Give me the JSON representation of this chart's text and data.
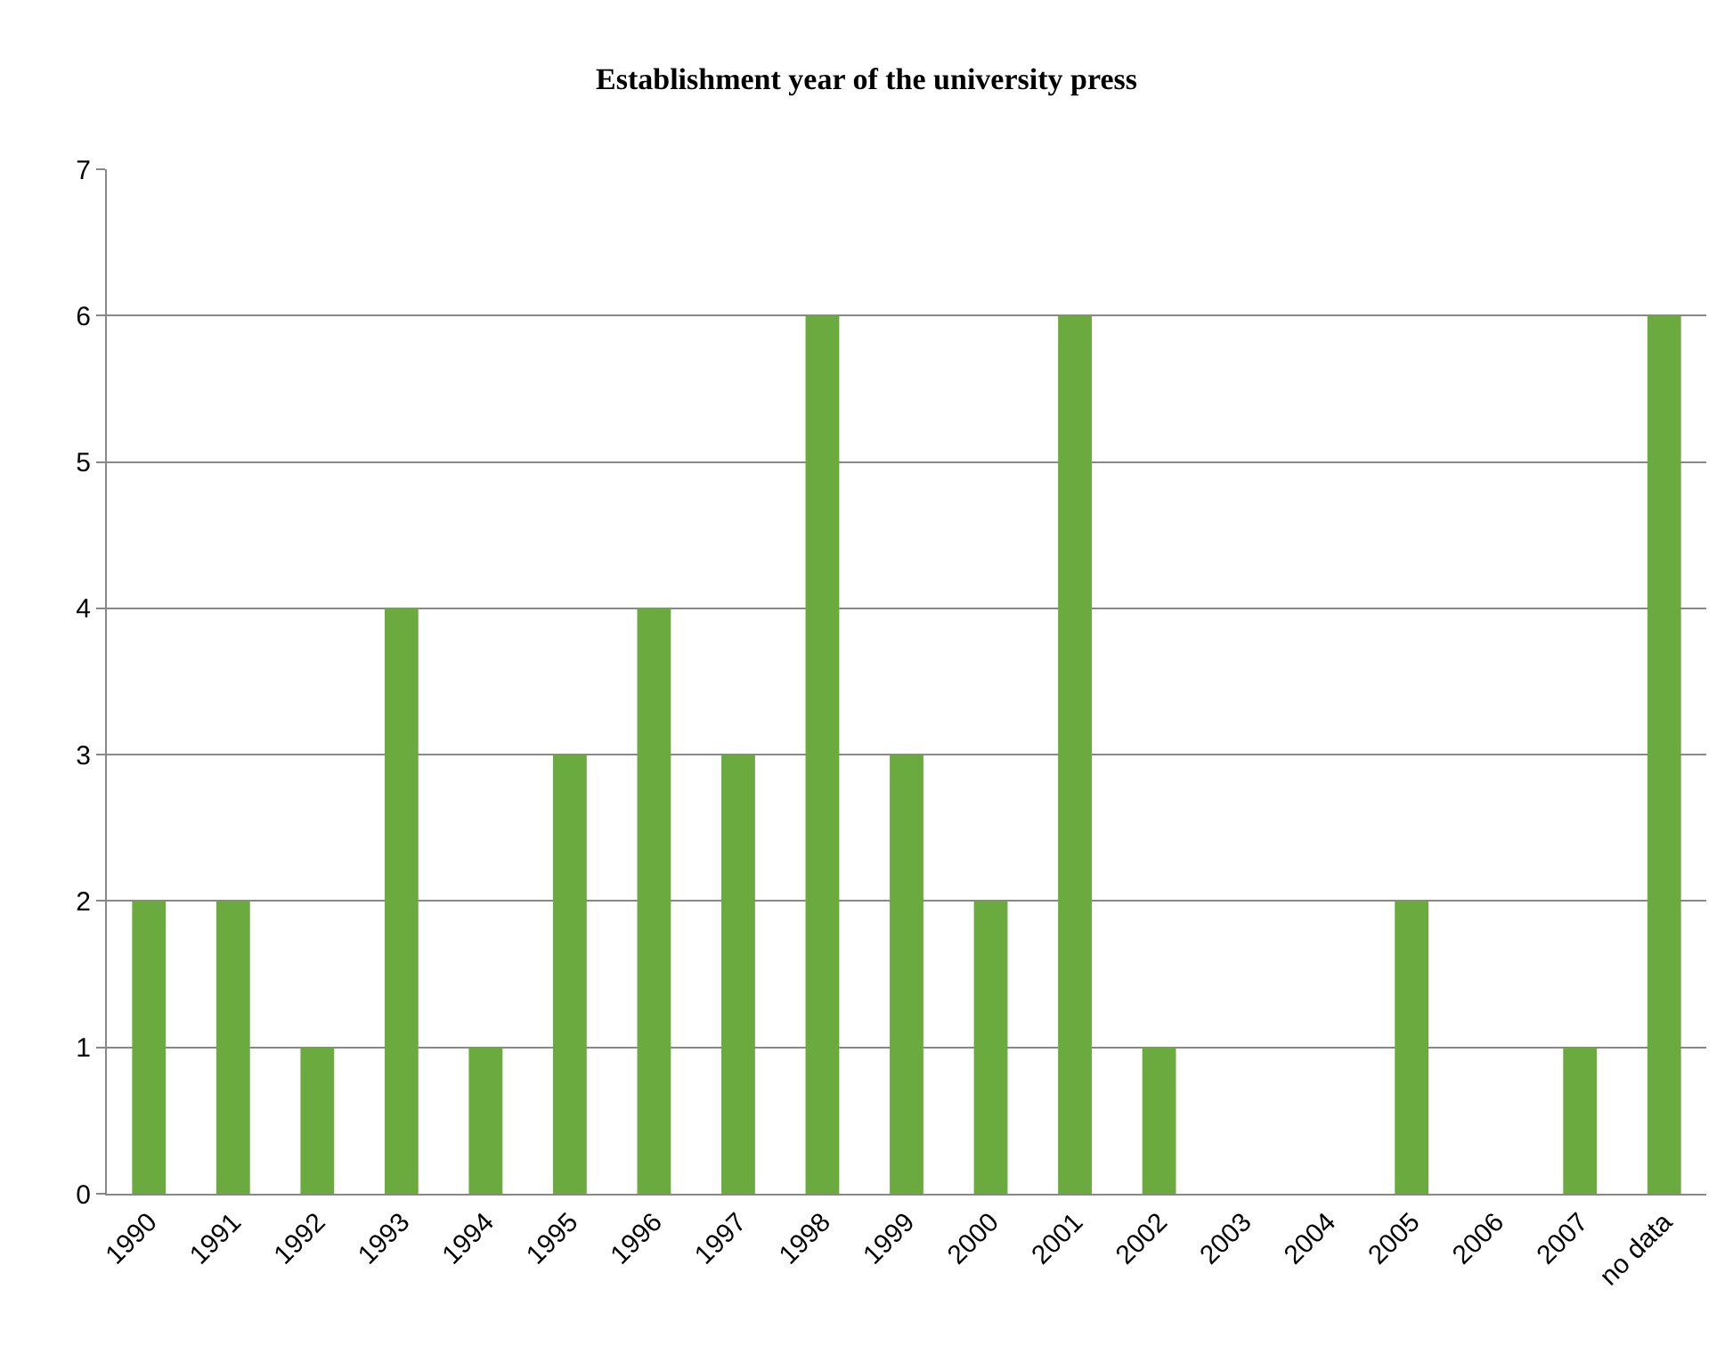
{
  "chart_data": {
    "type": "bar",
    "title": "Establishment year of the university press",
    "categories": [
      "1990",
      "1991",
      "1992",
      "1993",
      "1994",
      "1995",
      "1996",
      "1997",
      "1998",
      "1999",
      "2000",
      "2001",
      "2002",
      "2003",
      "2004",
      "2005",
      "2006",
      "2007",
      "no data"
    ],
    "values": [
      2,
      2,
      1,
      4,
      1,
      3,
      4,
      3,
      6,
      3,
      2,
      6,
      1,
      0,
      0,
      2,
      0,
      1,
      6
    ],
    "color": "#6aaa3e",
    "ylim": [
      0,
      7
    ],
    "yticks": [
      0,
      1,
      2,
      3,
      4,
      5,
      6,
      7
    ],
    "grid": "y",
    "legend": false
  }
}
